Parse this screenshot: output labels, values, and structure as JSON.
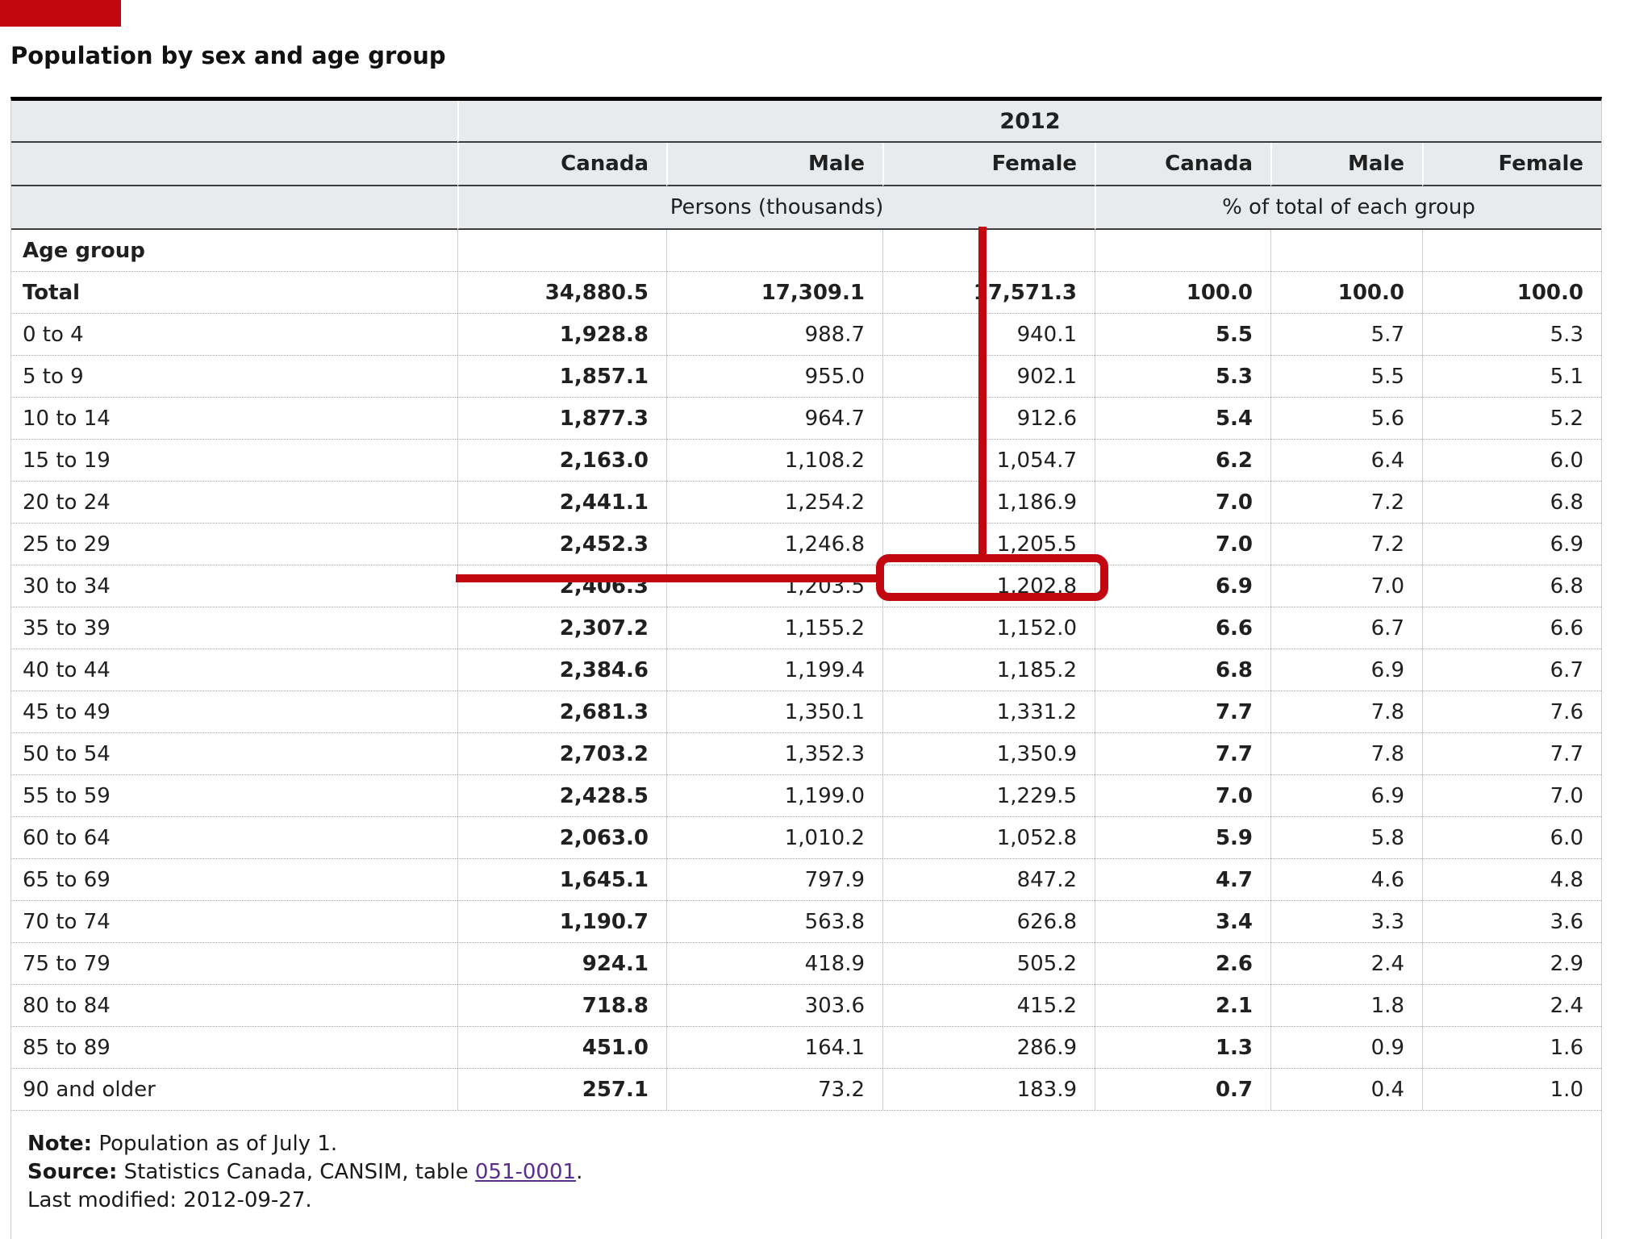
{
  "page": {
    "title": "Population by sex and age group"
  },
  "table": {
    "year_header": "2012",
    "stub_header": "Age group",
    "column_headers": [
      "Canada",
      "Male",
      "Female",
      "Canada",
      "Male",
      "Female"
    ],
    "unit_headers": {
      "persons": "Persons (thousands)",
      "percent": "% of total of each group"
    },
    "rows": [
      {
        "label": "Total",
        "bold": true,
        "values": [
          "34,880.5",
          "17,309.1",
          "17,571.3",
          "100.0",
          "100.0",
          "100.0"
        ]
      },
      {
        "label": "0 to 4",
        "bold": false,
        "values": [
          "1,928.8",
          "988.7",
          "940.1",
          "5.5",
          "5.7",
          "5.3"
        ]
      },
      {
        "label": "5 to 9",
        "bold": false,
        "values": [
          "1,857.1",
          "955.0",
          "902.1",
          "5.3",
          "5.5",
          "5.1"
        ]
      },
      {
        "label": "10 to 14",
        "bold": false,
        "values": [
          "1,877.3",
          "964.7",
          "912.6",
          "5.4",
          "5.6",
          "5.2"
        ]
      },
      {
        "label": "15 to 19",
        "bold": false,
        "values": [
          "2,163.0",
          "1,108.2",
          "1,054.7",
          "6.2",
          "6.4",
          "6.0"
        ]
      },
      {
        "label": "20 to 24",
        "bold": false,
        "values": [
          "2,441.1",
          "1,254.2",
          "1,186.9",
          "7.0",
          "7.2",
          "6.8"
        ]
      },
      {
        "label": "25 to 29",
        "bold": false,
        "values": [
          "2,452.3",
          "1,246.8",
          "1,205.5",
          "7.0",
          "7.2",
          "6.9"
        ]
      },
      {
        "label": "30 to 34",
        "bold": false,
        "values": [
          "2,406.3",
          "1,203.5",
          "1,202.8",
          "6.9",
          "7.0",
          "6.8"
        ]
      },
      {
        "label": "35 to 39",
        "bold": false,
        "values": [
          "2,307.2",
          "1,155.2",
          "1,152.0",
          "6.6",
          "6.7",
          "6.6"
        ]
      },
      {
        "label": "40 to 44",
        "bold": false,
        "values": [
          "2,384.6",
          "1,199.4",
          "1,185.2",
          "6.8",
          "6.9",
          "6.7"
        ]
      },
      {
        "label": "45 to 49",
        "bold": false,
        "values": [
          "2,681.3",
          "1,350.1",
          "1,331.2",
          "7.7",
          "7.8",
          "7.6"
        ]
      },
      {
        "label": "50 to 54",
        "bold": false,
        "values": [
          "2,703.2",
          "1,352.3",
          "1,350.9",
          "7.7",
          "7.8",
          "7.7"
        ]
      },
      {
        "label": "55 to 59",
        "bold": false,
        "values": [
          "2,428.5",
          "1,199.0",
          "1,229.5",
          "7.0",
          "6.9",
          "7.0"
        ]
      },
      {
        "label": "60 to 64",
        "bold": false,
        "values": [
          "2,063.0",
          "1,010.2",
          "1,052.8",
          "5.9",
          "5.8",
          "6.0"
        ]
      },
      {
        "label": "65 to 69",
        "bold": false,
        "values": [
          "1,645.1",
          "797.9",
          "847.2",
          "4.7",
          "4.6",
          "4.8"
        ]
      },
      {
        "label": "70 to 74",
        "bold": false,
        "values": [
          "1,190.7",
          "563.8",
          "626.8",
          "3.4",
          "3.3",
          "3.6"
        ]
      },
      {
        "label": "75 to 79",
        "bold": false,
        "values": [
          "924.1",
          "418.9",
          "505.2",
          "2.6",
          "2.4",
          "2.9"
        ]
      },
      {
        "label": "80 to 84",
        "bold": false,
        "values": [
          "718.8",
          "303.6",
          "415.2",
          "2.1",
          "1.8",
          "2.4"
        ]
      },
      {
        "label": "85 to 89",
        "bold": false,
        "values": [
          "451.0",
          "164.1",
          "286.9",
          "1.3",
          "0.9",
          "1.6"
        ]
      },
      {
        "label": "90 and older",
        "bold": false,
        "values": [
          "257.1",
          "73.2",
          "183.9",
          "0.7",
          "0.4",
          "1.0"
        ]
      }
    ]
  },
  "notes": {
    "note_label": "Note:",
    "note_text": " Population as of July 1.",
    "source_label": "Source:",
    "source_text_before": " Statistics Canada, CANSIM, table ",
    "source_link": "051-0001",
    "source_text_after": ".",
    "last_modified": "Last modified: 2012-09-27."
  },
  "annotation": {
    "highlighted_value": "1,202.8",
    "highlighted_row": "30 to 34",
    "highlighted_column": "Female",
    "color": "#c20710"
  },
  "colors": {
    "header_bg": "#e7ebee",
    "border_dark": "#000000",
    "grid_line": "#cdd1d6",
    "dotted_line": "#a6aaae",
    "link": "#5b2d8f",
    "text": "#202020"
  }
}
